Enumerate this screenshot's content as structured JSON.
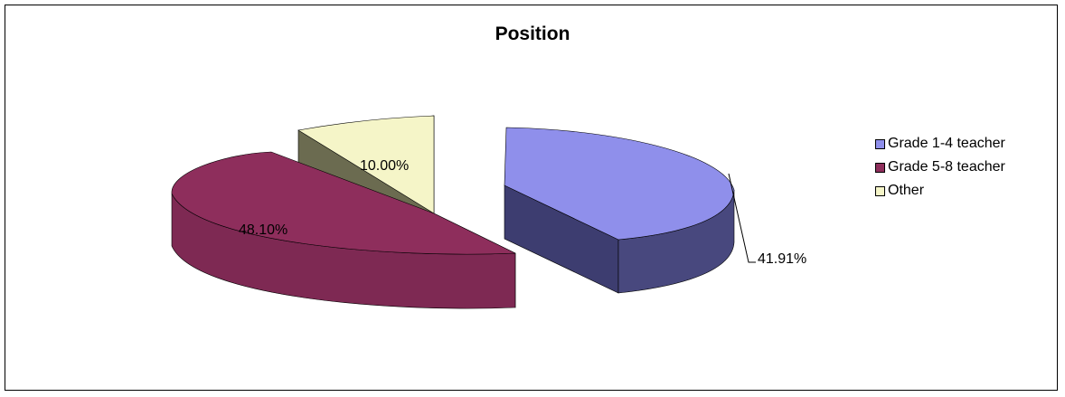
{
  "chart_data": {
    "type": "pie",
    "title": "Position",
    "categories": [
      "Grade 1-4 teacher",
      "Grade 5-8 teacher",
      "Other"
    ],
    "values": [
      41.91,
      48.1,
      10.0
    ],
    "data_labels": [
      "41.91%",
      "48.10%",
      "10.00%"
    ],
    "colors": [
      "#8F8FEB",
      "#8E2E5C",
      "#F5F5C8"
    ],
    "side_colors": [
      "#3D3D70",
      "#6A2044",
      "#6B6B50"
    ],
    "legend_position": "right",
    "exploded": true,
    "three_d": true
  }
}
